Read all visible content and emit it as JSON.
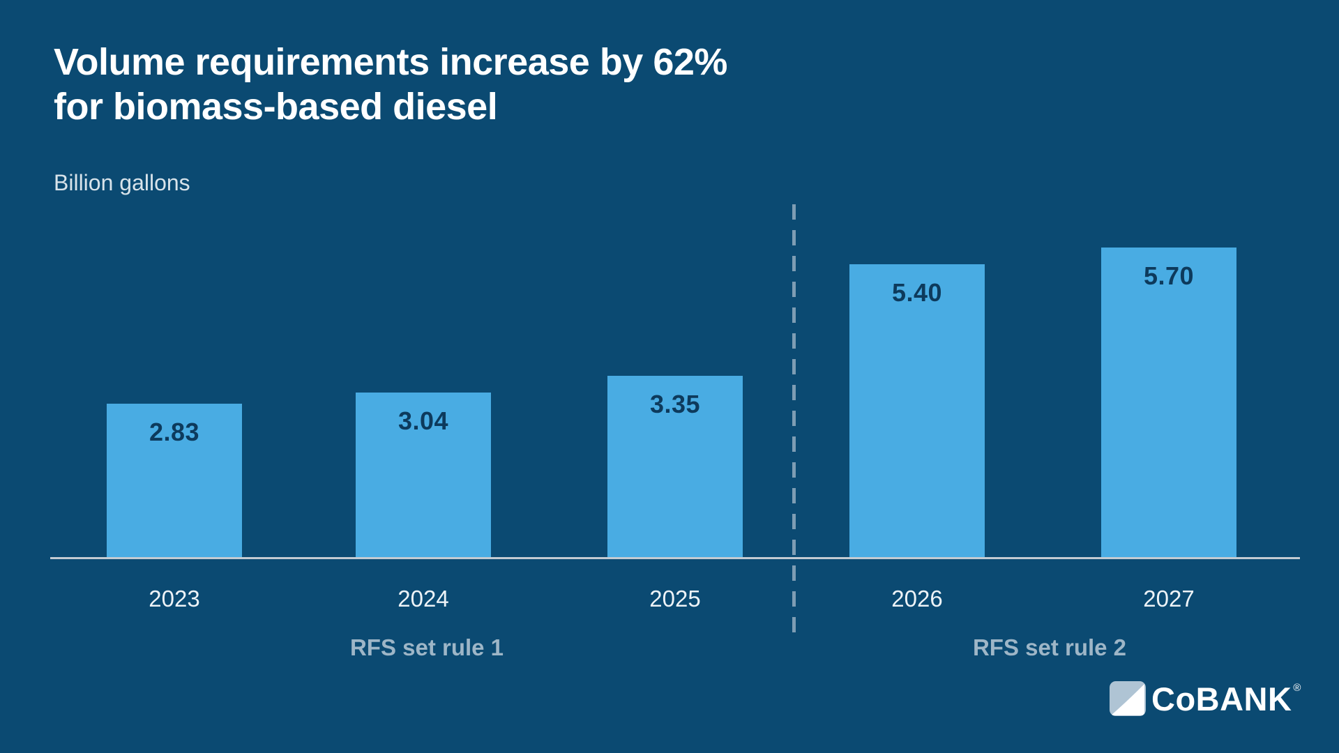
{
  "title_line1": "Volume requirements increase by 62%",
  "title_line2": "for biomass-based diesel",
  "units_label": "Billion gallons",
  "chart_data": {
    "type": "bar",
    "title": "Volume requirements increase by 62% for biomass-based diesel",
    "ylabel": "Billion gallons",
    "categories": [
      "2023",
      "2024",
      "2025",
      "2026",
      "2027"
    ],
    "values": [
      2.83,
      3.04,
      3.35,
      5.4,
      5.7
    ],
    "value_labels": [
      "2.83",
      "3.04",
      "3.35",
      "5.40",
      "5.70"
    ],
    "ylim": [
      0,
      6.4
    ],
    "grid": false,
    "legend": false,
    "groups": [
      {
        "label": "RFS set rule 1",
        "categories": [
          "2023",
          "2024",
          "2025"
        ]
      },
      {
        "label": "RFS set rule 2",
        "categories": [
          "2026",
          "2027"
        ]
      }
    ],
    "divider": {
      "style": "dashed",
      "between": [
        "2025",
        "2026"
      ]
    }
  },
  "colors": {
    "background": "#0B4A72",
    "bar": "#49ACE3",
    "bar_label": "#0D3A5C",
    "title_text": "#FFFFFF",
    "units_text": "#D8E3EA",
    "year_text": "#EDF3F7",
    "group_text": "#9EB6C7",
    "axis_line": "#C3CBD2",
    "divider_line": "#7E9DB4",
    "logo_accent": "#AFC4D4"
  },
  "logo": {
    "wordmark": "CoBANK",
    "registered_mark": "®"
  }
}
